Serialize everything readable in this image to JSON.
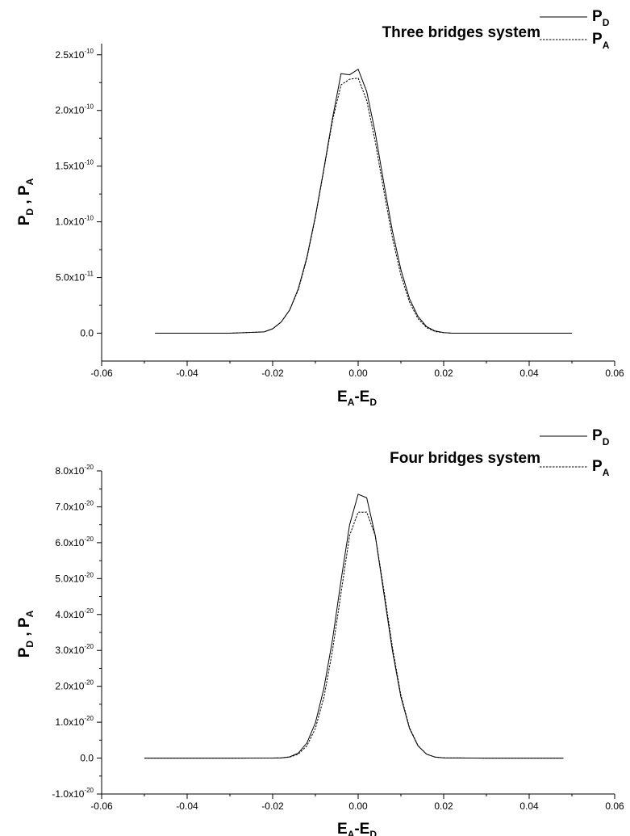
{
  "chart_data": [
    {
      "type": "line",
      "title": "Three bridges system",
      "xlabel": {
        "main": "E",
        "sub1": "A",
        "mid": "-E",
        "sub2": "D"
      },
      "ylabel": {
        "p1": "P",
        "s1": "D",
        "sep": " , ",
        "p2": "P",
        "s2": "A"
      },
      "xlim": [
        -0.06,
        0.06
      ],
      "ylim": [
        -2.5e-11,
        2.6e-10
      ],
      "xticks": [
        {
          "v": -0.06,
          "label": "-0.06"
        },
        {
          "v": -0.04,
          "label": "-0.04"
        },
        {
          "v": -0.02,
          "label": "-0.02"
        },
        {
          "v": 0.0,
          "label": "0.00"
        },
        {
          "v": 0.02,
          "label": "0.02"
        },
        {
          "v": 0.04,
          "label": "0.04"
        },
        {
          "v": 0.06,
          "label": "0.06"
        }
      ],
      "yticks": [
        {
          "v": 0,
          "mant": "0.0",
          "exp": ""
        },
        {
          "v": 5e-11,
          "mant": "5.0x10",
          "exp": "-11"
        },
        {
          "v": 1e-10,
          "mant": "1.0x10",
          "exp": "-10"
        },
        {
          "v": 1.5e-10,
          "mant": "1.5x10",
          "exp": "-10"
        },
        {
          "v": 2e-10,
          "mant": "2.0x10",
          "exp": "-10"
        },
        {
          "v": 2.5e-10,
          "mant": "2.5x10",
          "exp": "-10"
        }
      ],
      "legend_position": "top-right",
      "series": [
        {
          "name": {
            "main": "P",
            "sub": "D"
          },
          "dash": "solid",
          "x": [
            -0.0475,
            -0.03,
            -0.022,
            -0.02,
            -0.018,
            -0.016,
            -0.014,
            -0.012,
            -0.01,
            -0.008,
            -0.006,
            -0.004,
            -0.002,
            0.0,
            0.002,
            0.004,
            0.006,
            0.008,
            0.01,
            0.012,
            0.014,
            0.016,
            0.018,
            0.02,
            0.022,
            0.03,
            0.05
          ],
          "y": [
            0,
            0,
            1.2e-12,
            4e-12,
            1e-11,
            2.1e-11,
            4e-11,
            6.8e-11,
            1.05e-10,
            1.48e-10,
            1.93e-10,
            2.33e-10,
            2.32e-10,
            2.37e-10,
            2.17e-10,
            1.8e-10,
            1.35e-10,
            9.2e-11,
            5.7e-11,
            3.1e-11,
            1.5e-11,
            6e-12,
            2e-12,
            6e-13,
            0,
            0,
            0
          ]
        },
        {
          "name": {
            "main": "P",
            "sub": "A"
          },
          "dash": "dashed",
          "x": [
            -0.0475,
            -0.03,
            -0.022,
            -0.02,
            -0.018,
            -0.016,
            -0.014,
            -0.012,
            -0.01,
            -0.008,
            -0.006,
            -0.004,
            -0.002,
            0.0,
            0.002,
            0.004,
            0.006,
            0.008,
            0.01,
            0.012,
            0.014,
            0.016,
            0.018,
            0.02,
            0.022,
            0.03,
            0.05
          ],
          "y": [
            0,
            0,
            1.2e-12,
            4e-12,
            1e-11,
            2.1e-11,
            3.9e-11,
            6.7e-11,
            1.04e-10,
            1.47e-10,
            1.91e-10,
            2.23e-10,
            2.28e-10,
            2.29e-10,
            2.09e-10,
            1.72e-10,
            1.28e-10,
            8.6e-11,
            5.2e-11,
            2.8e-11,
            1.3e-11,
            5e-12,
            1.5e-12,
            5e-13,
            0,
            0,
            0
          ]
        }
      ]
    },
    {
      "type": "line",
      "title": "Four bridges system",
      "xlabel": {
        "main": "E",
        "sub1": "A",
        "mid": "-E",
        "sub2": "D"
      },
      "ylabel": {
        "p1": "P",
        "s1": "D",
        "sep": " , ",
        "p2": "P",
        "s2": "A"
      },
      "xlim": [
        -0.06,
        0.06
      ],
      "ylim": [
        -1e-20,
        8e-20
      ],
      "xticks": [
        {
          "v": -0.06,
          "label": "-0.06"
        },
        {
          "v": -0.04,
          "label": "-0.04"
        },
        {
          "v": -0.02,
          "label": "-0.02"
        },
        {
          "v": 0.0,
          "label": "0.00"
        },
        {
          "v": 0.02,
          "label": "0.02"
        },
        {
          "v": 0.04,
          "label": "0.04"
        },
        {
          "v": 0.06,
          "label": "0.06"
        }
      ],
      "yticks": [
        {
          "v": -1e-20,
          "mant": "-1.0x10",
          "exp": "-20"
        },
        {
          "v": 0,
          "mant": "0.0",
          "exp": ""
        },
        {
          "v": 1e-20,
          "mant": "1.0x10",
          "exp": "-20"
        },
        {
          "v": 2e-20,
          "mant": "2.0x10",
          "exp": "-20"
        },
        {
          "v": 3e-20,
          "mant": "3.0x10",
          "exp": "-20"
        },
        {
          "v": 4e-20,
          "mant": "4.0x10",
          "exp": "-20"
        },
        {
          "v": 5e-20,
          "mant": "5.0x10",
          "exp": "-20"
        },
        {
          "v": 6e-20,
          "mant": "6.0x10",
          "exp": "-20"
        },
        {
          "v": 7e-20,
          "mant": "7.0x10",
          "exp": "-20"
        },
        {
          "v": 8e-20,
          "mant": "8.0x10",
          "exp": "-20"
        }
      ],
      "legend_position": "top-right",
      "series": [
        {
          "name": {
            "main": "P",
            "sub": "D"
          },
          "dash": "solid",
          "x": [
            -0.05,
            -0.03,
            -0.02,
            -0.018,
            -0.016,
            -0.014,
            -0.012,
            -0.01,
            -0.008,
            -0.006,
            -0.004,
            -0.002,
            0.0,
            0.002,
            0.004,
            0.006,
            0.008,
            0.01,
            0.012,
            0.014,
            0.016,
            0.018,
            0.02,
            0.03,
            0.048
          ],
          "y": [
            0,
            0,
            1e-23,
            8e-23,
            3.5e-22,
            1.4e-21,
            4.2e-21,
            9.8e-21,
            1.95e-20,
            3.3e-20,
            4.95e-20,
            6.5e-20,
            7.35e-20,
            7.25e-20,
            6.2e-20,
            4.6e-20,
            3e-20,
            1.7e-20,
            8.3e-21,
            3.4e-21,
            1.1e-21,
            2.8e-22,
            5e-23,
            0,
            0
          ]
        },
        {
          "name": {
            "main": "P",
            "sub": "A"
          },
          "dash": "dashed",
          "x": [
            -0.05,
            -0.03,
            -0.02,
            -0.018,
            -0.016,
            -0.014,
            -0.012,
            -0.01,
            -0.008,
            -0.006,
            -0.004,
            -0.002,
            0.0,
            0.002,
            0.004,
            0.006,
            0.008,
            0.01,
            0.012,
            0.014,
            0.016,
            0.018,
            0.02,
            0.03,
            0.048
          ],
          "y": [
            0,
            0,
            1e-23,
            6e-23,
            2.8e-22,
            1.1e-21,
            3.4e-21,
            8.3e-21,
            1.7e-20,
            3e-20,
            4.6e-20,
            6.2e-20,
            6.85e-20,
            6.85e-20,
            6.2e-20,
            4.7e-20,
            3.1e-20,
            1.75e-20,
            8.5e-21,
            3.5e-21,
            1.1e-21,
            2.8e-22,
            5e-23,
            0,
            0
          ]
        }
      ]
    }
  ]
}
